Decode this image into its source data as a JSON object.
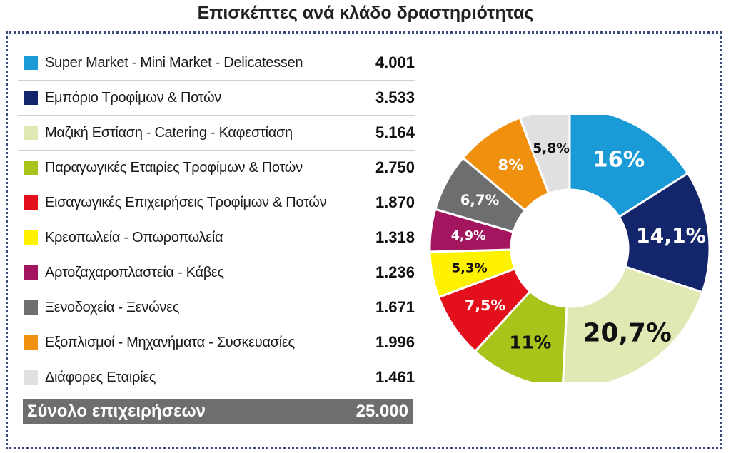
{
  "title": "Επισκέπτες ανά κλάδο δραστηριότητας",
  "total": {
    "label": "Σύνολο επιχειρήσεων",
    "value": "25.000"
  },
  "chart_data": {
    "type": "pie",
    "donut": true,
    "title": "Επισκέπτες ανά κλάδο δραστηριότητας",
    "items": [
      {
        "label": "Super Market - Mini Market - Delicatessen",
        "value": "4.001",
        "pct": 16,
        "pct_label": "16%",
        "color": "#1a9ad6",
        "text_color": "#ffffff"
      },
      {
        "label": "Εμπόριο Τροφίμων & Ποτών",
        "value": "3.533",
        "pct": 14.1,
        "pct_label": "14,1%",
        "color": "#14266b",
        "text_color": "#ffffff"
      },
      {
        "label": "Μαζική Εστίαση - Catering - Καφεστίαση",
        "value": "5.164",
        "pct": 20.7,
        "pct_label": "20,7%",
        "color": "#e2e8b4",
        "text_color": "#111111"
      },
      {
        "label": "Παραγωγικές Εταιρίες Τροφίμων & Ποτών",
        "value": "2.750",
        "pct": 11,
        "pct_label": "11%",
        "color": "#a8c41b",
        "text_color": "#111111"
      },
      {
        "label": "Εισαγωγικές Επιχειρήσεις Τροφίμων & Ποτών",
        "value": "1.870",
        "pct": 7.5,
        "pct_label": "7,5%",
        "color": "#e3101b",
        "text_color": "#ffffff"
      },
      {
        "label": "Κρεοπωλεία - Οπωροπωλεία",
        "value": "1.318",
        "pct": 5.3,
        "pct_label": "5,3%",
        "color": "#fff200",
        "text_color": "#111111"
      },
      {
        "label": "Αρτοζαχαροπλαστεία - Κάβες",
        "value": "1.236",
        "pct": 4.9,
        "pct_label": "4,9%",
        "color": "#a3155f",
        "text_color": "#ffffff"
      },
      {
        "label": "Ξενοδοχεία - Ξενώνες",
        "value": "1.671",
        "pct": 6.7,
        "pct_label": "6,7%",
        "color": "#6d6e70",
        "text_color": "#ffffff"
      },
      {
        "label": "Εξοπλισμοί - Μηχανήματα - Συσκευασίες",
        "value": "1.996",
        "pct": 8,
        "pct_label": "8%",
        "color": "#f0900f",
        "text_color": "#ffffff"
      },
      {
        "label": "Διάφορες Εταιρίες",
        "value": "1.461",
        "pct": 5.8,
        "pct_label": "5,8%",
        "color": "#dfe0e2",
        "text_color": "#111111"
      }
    ]
  }
}
